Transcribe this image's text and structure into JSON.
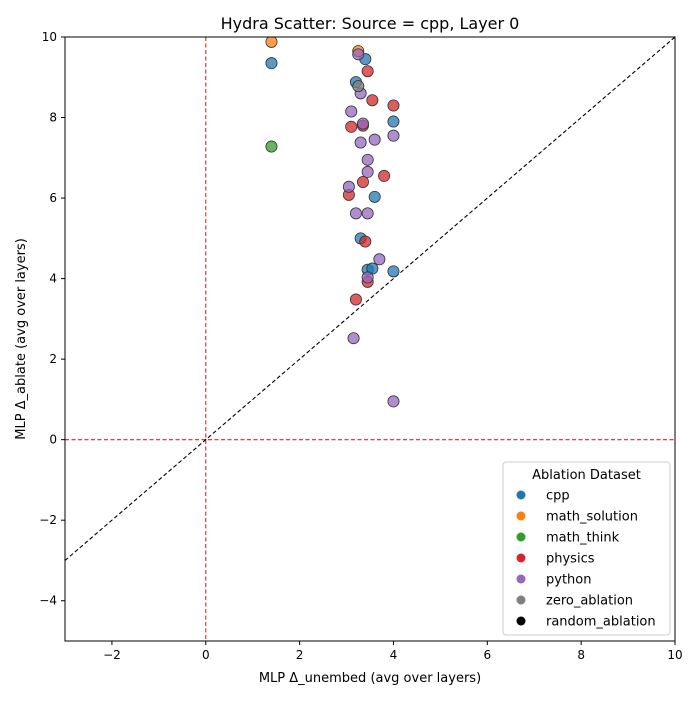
{
  "chart_data": {
    "type": "scatter",
    "title": "Hydra Scatter: Source = cpp, Layer 0",
    "xlabel": "MLP Δ_unembed (avg over layers)",
    "ylabel": "MLP Δ_ablate (avg over layers)",
    "xlim": [
      -3,
      10
    ],
    "ylim": [
      -5,
      10
    ],
    "xticks": [
      -2,
      0,
      2,
      4,
      6,
      8,
      10
    ],
    "yticks": [
      -4,
      -2,
      0,
      2,
      4,
      6,
      8,
      10
    ],
    "xtick_labels": [
      "−2",
      "0",
      "2",
      "4",
      "6",
      "8",
      "10"
    ],
    "ytick_labels": [
      "−4",
      "−2",
      "0",
      "2",
      "4",
      "6",
      "8",
      "10"
    ],
    "grid": false,
    "reference_lines": [
      {
        "kind": "vertical",
        "x": 0,
        "color": "#d62728",
        "style": "dashed"
      },
      {
        "kind": "horizontal",
        "y": 0,
        "color": "#d62728",
        "style": "dashed"
      },
      {
        "kind": "diagonal",
        "slope": 1,
        "intercept": 0,
        "color": "#000000",
        "style": "dashed"
      }
    ],
    "legend": {
      "title": "Ablation Dataset",
      "placement": "lower-right",
      "entries": [
        {
          "label": "cpp",
          "color": "#1f77b4"
        },
        {
          "label": "math_solution",
          "color": "#ff7f0e"
        },
        {
          "label": "math_think",
          "color": "#2ca02c"
        },
        {
          "label": "physics",
          "color": "#d62728"
        },
        {
          "label": "python",
          "color": "#9467bd"
        },
        {
          "label": "zero_ablation",
          "color": "#7f7f7f"
        },
        {
          "label": "random_ablation",
          "color": "#000000"
        }
      ]
    },
    "series": [
      {
        "name": "cpp",
        "color": "#1f77b4",
        "points": [
          {
            "x": 1.4,
            "y": 9.35
          },
          {
            "x": 3.4,
            "y": 9.45
          },
          {
            "x": 3.2,
            "y": 8.88
          },
          {
            "x": 4.0,
            "y": 7.9
          },
          {
            "x": 3.6,
            "y": 6.03
          },
          {
            "x": 3.3,
            "y": 5.0
          },
          {
            "x": 3.45,
            "y": 4.22
          },
          {
            "x": 3.55,
            "y": 4.25
          },
          {
            "x": 4.0,
            "y": 4.18
          }
        ]
      },
      {
        "name": "math_solution",
        "color": "#ff7f0e",
        "points": [
          {
            "x": 1.4,
            "y": 9.88
          },
          {
            "x": 3.25,
            "y": 9.65
          }
        ]
      },
      {
        "name": "math_think",
        "color": "#2ca02c",
        "points": [
          {
            "x": 1.4,
            "y": 7.28
          }
        ]
      },
      {
        "name": "physics",
        "color": "#d62728",
        "points": [
          {
            "x": 3.45,
            "y": 9.15
          },
          {
            "x": 3.55,
            "y": 8.43
          },
          {
            "x": 4.0,
            "y": 8.3
          },
          {
            "x": 3.1,
            "y": 7.77
          },
          {
            "x": 3.35,
            "y": 7.8
          },
          {
            "x": 3.8,
            "y": 6.55
          },
          {
            "x": 3.35,
            "y": 6.4
          },
          {
            "x": 3.05,
            "y": 6.08
          },
          {
            "x": 3.4,
            "y": 4.92
          },
          {
            "x": 3.45,
            "y": 3.92
          },
          {
            "x": 3.2,
            "y": 3.48
          }
        ]
      },
      {
        "name": "python",
        "color": "#9467bd",
        "points": [
          {
            "x": 3.25,
            "y": 9.57
          },
          {
            "x": 3.3,
            "y": 8.6
          },
          {
            "x": 3.1,
            "y": 8.15
          },
          {
            "x": 3.35,
            "y": 7.85
          },
          {
            "x": 4.0,
            "y": 7.55
          },
          {
            "x": 3.6,
            "y": 7.45
          },
          {
            "x": 3.3,
            "y": 7.38
          },
          {
            "x": 3.45,
            "y": 6.95
          },
          {
            "x": 3.45,
            "y": 6.65
          },
          {
            "x": 3.05,
            "y": 6.28
          },
          {
            "x": 3.2,
            "y": 5.62
          },
          {
            "x": 3.45,
            "y": 5.62
          },
          {
            "x": 3.7,
            "y": 4.48
          },
          {
            "x": 3.45,
            "y": 4.03
          },
          {
            "x": 3.15,
            "y": 2.52
          },
          {
            "x": 4.0,
            "y": 0.95
          }
        ]
      },
      {
        "name": "zero_ablation",
        "color": "#7f7f7f",
        "points": [
          {
            "x": 3.25,
            "y": 8.78
          }
        ]
      },
      {
        "name": "random_ablation",
        "color": "#000000",
        "points": []
      }
    ]
  }
}
